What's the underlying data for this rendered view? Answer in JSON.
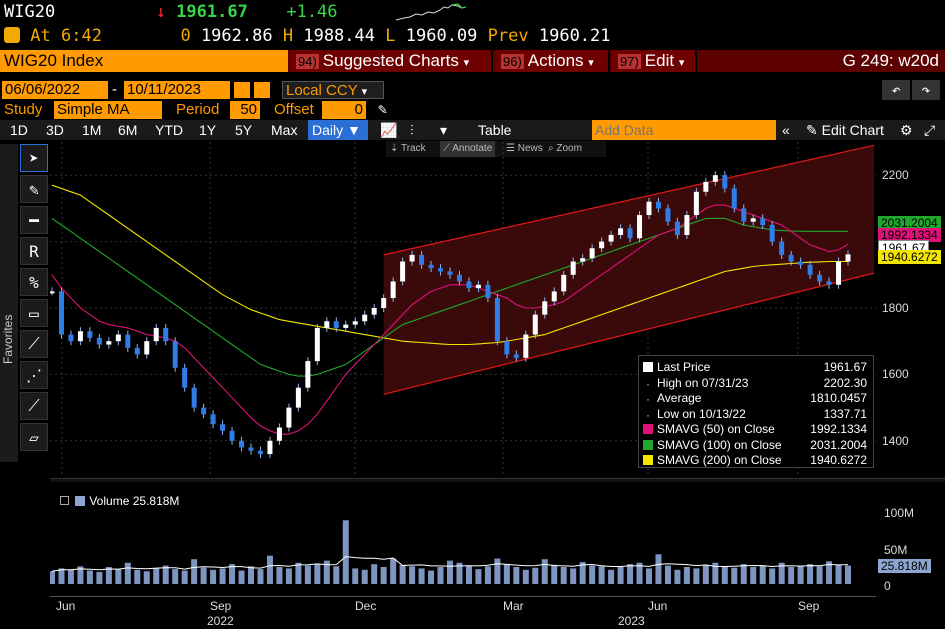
{
  "ticker": {
    "symbol": "WIG20",
    "arrow": "↓",
    "last": "1961.67",
    "change": "+1.46"
  },
  "quote": {
    "at_label": "At",
    "time": "6:42",
    "open_prefix": "0",
    "open": "1962.86",
    "high_label": "H",
    "high": "1988.44",
    "low_label": "L",
    "low": "1960.09",
    "prev_label": "Prev",
    "prev": "1960.21"
  },
  "menubar": {
    "title": "WIG20 Index",
    "suggested": {
      "num": "94)",
      "label": "Suggested Charts"
    },
    "actions": {
      "num": "96)",
      "label": "Actions"
    },
    "edit": {
      "num": "97)",
      "label": "Edit"
    },
    "right": "G 249: w20d"
  },
  "range": {
    "start": "06/06/2022",
    "end": "10/11/2023",
    "currency": "Local CCY"
  },
  "study": {
    "study_label": "Study",
    "study_value": "Simple MA",
    "period_label": "Period",
    "period_value": "50",
    "offset_label": "Offset",
    "offset_value": "0"
  },
  "toolbar": {
    "periods": [
      "1D",
      "3D",
      "1M",
      "6M",
      "YTD",
      "1Y",
      "5Y",
      "Max"
    ],
    "frequency": "Daily ▼",
    "table": "Table",
    "add_data_placeholder": "Add Data",
    "edit_chart": "Edit Chart"
  },
  "subtools": {
    "track": "Track",
    "annotate": "Annotate",
    "news": "News",
    "zoom": "Zoom"
  },
  "sidebar": {
    "favorites": "Favorites"
  },
  "legend": {
    "rows": [
      {
        "label": "Last Price",
        "value": "1961.67",
        "color": "#ffffff"
      },
      {
        "label": "High on 07/31/23",
        "value": "2202.30",
        "color": ""
      },
      {
        "label": "Average",
        "value": "1810.0457",
        "color": ""
      },
      {
        "label": "Low on 10/13/22",
        "value": "1337.71",
        "color": ""
      },
      {
        "label": "SMAVG (50)  on Close",
        "value": "1992.1334",
        "color": "#e0107a"
      },
      {
        "label": "SMAVG (100)  on Close",
        "value": "2031.2004",
        "color": "#1fa82c"
      },
      {
        "label": "SMAVG (200)  on Close",
        "value": "1940.6272",
        "color": "#f2e600"
      }
    ]
  },
  "price_axis": {
    "ticks": [
      "2200",
      "1800",
      "1600",
      "1400"
    ],
    "tags": [
      {
        "text": "2031.2004",
        "color": "#1fa82c"
      },
      {
        "text": "1992.1334",
        "color": "#e0107a"
      },
      {
        "text": "1961.67",
        "color": "#ffffff"
      },
      {
        "text": "1940.6272",
        "color": "#f2e600"
      }
    ]
  },
  "volume": {
    "label": "Volume",
    "value": "25.818M",
    "ticks": [
      "100M",
      "50M",
      "0"
    ],
    "tag": "25.818M"
  },
  "x_axis": {
    "months": [
      "Jun",
      "Sep",
      "Dec",
      "Mar",
      "Jun",
      "Sep"
    ],
    "years": [
      "2022",
      "2023"
    ]
  },
  "chart_data": {
    "type": "line",
    "series": [
      {
        "name": "Last Price",
        "color": "#2f7de8",
        "values": [
          1850,
          1720,
          1700,
          1730,
          1710,
          1690,
          1700,
          1720,
          1680,
          1660,
          1700,
          1740,
          1700,
          1620,
          1560,
          1500,
          1480,
          1450,
          1430,
          1400,
          1380,
          1370,
          1360,
          1400,
          1440,
          1500,
          1560,
          1640,
          1740,
          1760,
          1740,
          1750,
          1760,
          1780,
          1800,
          1830,
          1880,
          1940,
          1960,
          1930,
          1920,
          1910,
          1900,
          1880,
          1860,
          1870,
          1830,
          1700,
          1660,
          1650,
          1720,
          1780,
          1820,
          1850,
          1900,
          1940,
          1950,
          1980,
          2000,
          2020,
          2040,
          2010,
          2080,
          2120,
          2100,
          2060,
          2020,
          2080,
          2150,
          2180,
          2200,
          2160,
          2100,
          2060,
          2070,
          2050,
          2000,
          1960,
          1940,
          1930,
          1900,
          1880,
          1870,
          1940,
          1961.67
        ]
      },
      {
        "name": "SMAVG (50)",
        "color": "#e0107a",
        "values": [
          1900,
          1860,
          1830,
          1800,
          1780,
          1760,
          1750,
          1745,
          1740,
          1730,
          1720,
          1715,
          1710,
          1700,
          1680,
          1650,
          1620,
          1590,
          1560,
          1530,
          1500,
          1470,
          1445,
          1430,
          1420,
          1420,
          1430,
          1450,
          1480,
          1520,
          1560,
          1600,
          1630,
          1660,
          1690,
          1720,
          1750,
          1780,
          1810,
          1830,
          1850,
          1860,
          1870,
          1870,
          1870,
          1860,
          1850,
          1840,
          1830,
          1810,
          1800,
          1800,
          1805,
          1810,
          1820,
          1840,
          1860,
          1880,
          1900,
          1920,
          1940,
          1960,
          1980,
          2000,
          2020,
          2030,
          2040,
          2060,
          2080,
          2100,
          2110,
          2110,
          2100,
          2090,
          2080,
          2070,
          2060,
          2050,
          2030,
          2010,
          1990,
          1980,
          1970,
          1975,
          1992
        ]
      },
      {
        "name": "SMAVG (100)",
        "color": "#1fa82c",
        "values": [
          2070,
          2050,
          2030,
          2010,
          1990,
          1970,
          1950,
          1930,
          1910,
          1890,
          1870,
          1850,
          1830,
          1810,
          1790,
          1770,
          1750,
          1730,
          1710,
          1690,
          1670,
          1650,
          1630,
          1620,
          1610,
          1600,
          1595,
          1595,
          1600,
          1610,
          1620,
          1630,
          1650,
          1670,
          1690,
          1710,
          1730,
          1750,
          1760,
          1770,
          1780,
          1790,
          1800,
          1810,
          1820,
          1830,
          1840,
          1850,
          1860,
          1870,
          1880,
          1890,
          1900,
          1910,
          1920,
          1930,
          1940,
          1950,
          1960,
          1970,
          1980,
          1990,
          2000,
          2010,
          2020,
          2030,
          2040,
          2050,
          2060,
          2070,
          2070,
          2070,
          2060,
          2050,
          2045,
          2040,
          2035,
          2033,
          2032,
          2031,
          2031,
          2031,
          2031,
          2031,
          2031
        ]
      },
      {
        "name": "SMAVG (200)",
        "color": "#f2e600",
        "values": [
          2170,
          2160,
          2150,
          2140,
          2120,
          2100,
          2080,
          2060,
          2040,
          2020,
          2000,
          1980,
          1960,
          1940,
          1920,
          1900,
          1880,
          1860,
          1840,
          1825,
          1810,
          1795,
          1785,
          1775,
          1765,
          1760,
          1755,
          1750,
          1745,
          1740,
          1735,
          1730,
          1725,
          1720,
          1715,
          1710,
          1705,
          1700,
          1698,
          1696,
          1694,
          1692,
          1690,
          1690,
          1690,
          1692,
          1694,
          1696,
          1700,
          1705,
          1710,
          1715,
          1720,
          1730,
          1740,
          1750,
          1760,
          1770,
          1780,
          1790,
          1800,
          1810,
          1820,
          1830,
          1840,
          1850,
          1860,
          1870,
          1880,
          1890,
          1900,
          1910,
          1915,
          1920,
          1925,
          1928,
          1930,
          1932,
          1934,
          1936,
          1938,
          1939,
          1940,
          1940,
          1940
        ]
      }
    ],
    "volume": [
      18,
      22,
      20,
      25,
      19,
      17,
      24,
      21,
      30,
      20,
      18,
      22,
      26,
      21,
      19,
      35,
      23,
      20,
      22,
      28,
      19,
      25,
      21,
      40,
      24,
      22,
      30,
      26,
      28,
      33,
      25,
      90,
      22,
      20,
      28,
      24,
      36,
      27,
      25,
      22,
      19,
      24,
      33,
      30,
      26,
      21,
      25,
      36,
      28,
      24,
      20,
      23,
      35,
      27,
      24,
      22,
      31,
      26,
      25,
      20,
      24,
      28,
      30,
      22,
      42,
      26,
      20,
      24,
      22,
      27,
      30,
      25,
      23,
      28,
      24,
      26,
      22,
      30,
      24,
      26,
      28,
      25,
      32,
      27,
      26
    ],
    "ylim": [
      1300,
      2300
    ],
    "vol_ylim": [
      0,
      120
    ],
    "channel": {
      "upper_start": 1960,
      "upper_end": 2290,
      "lower_start": 1540,
      "lower_end": 1905
    }
  }
}
